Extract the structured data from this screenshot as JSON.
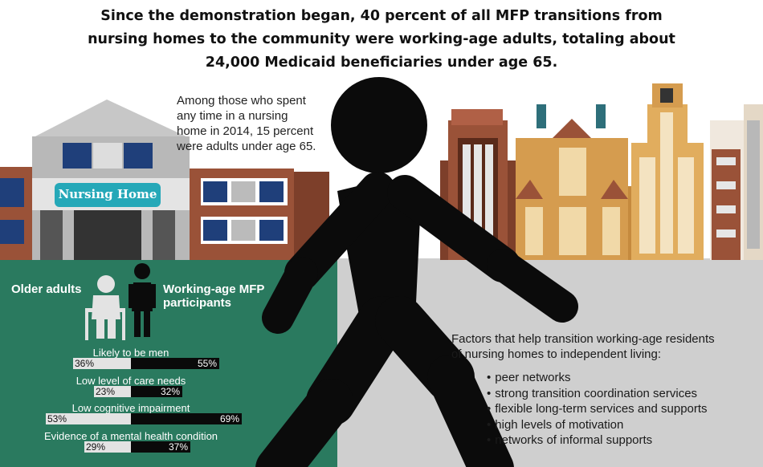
{
  "headline": {
    "line1": "Since the demonstration began, 40 percent of all MFP transitions from",
    "line2": "nursing homes to the community were working-age adults, totaling about",
    "line3": "24,000 Medicaid beneficiaries under age 65."
  },
  "callout": {
    "line1": "Among those who spent",
    "line2": "any time in a nursing",
    "line3": "home in 2014, 15 percent",
    "line4": "were adults under age 65."
  },
  "building_sign": "Nursing Home",
  "legend": {
    "older_label": "Older adults",
    "working_line1": "Working-age MFP",
    "working_line2": "participants"
  },
  "chart_data": {
    "type": "bar",
    "categories": [
      "Likely to be men",
      "Low level of care needs",
      "Low cognitive impairment",
      "Evidence of a mental health condition"
    ],
    "series": [
      {
        "name": "Older adults",
        "values": [
          36,
          23,
          53,
          29
        ],
        "labels": [
          "36%",
          "23%",
          "53%",
          "29%"
        ]
      },
      {
        "name": "Working-age MFP participants",
        "values": [
          55,
          32,
          69,
          37
        ],
        "labels": [
          "55%",
          "32%",
          "69%",
          "37%"
        ]
      }
    ]
  },
  "factors": {
    "heading_line1": "Factors that help transition working-age residents",
    "heading_line2": "of nursing homes to independent living:",
    "items": [
      "peer networks",
      "strong transition coordination services",
      "flexible long-term services and supports",
      "high levels of motivation",
      "networks of informal supports"
    ]
  },
  "colors": {
    "green_panel": "#2a7a5f",
    "gray_panel": "#cfcfcf",
    "brick": "#9a5238",
    "tan_building": "#d59c4f",
    "teal_sign": "#25a8b8",
    "figure": "#0b0b0b"
  },
  "icons": [
    "nursing-home-building-icon",
    "city-skyline-icon",
    "walking-person-icon",
    "older-adult-with-walker-icon",
    "working-age-person-icon"
  ]
}
